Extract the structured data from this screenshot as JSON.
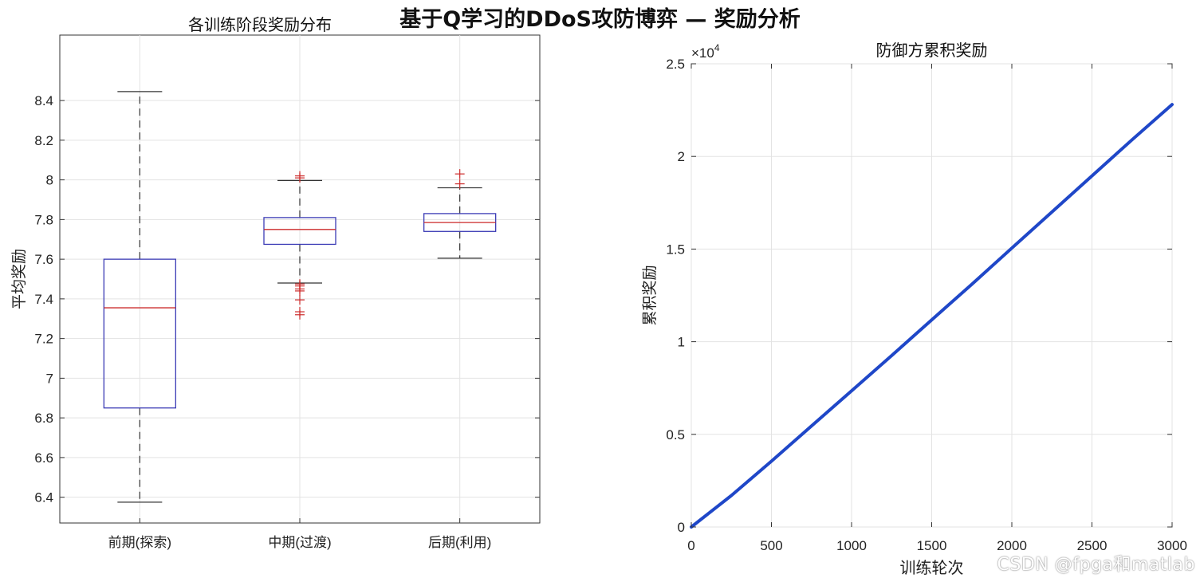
{
  "figure_title": "基于Q学习的DDoS攻防博弈 — 奖励分析",
  "watermark": "CSDN @fpga和matlab",
  "colors": {
    "box_edge": "#3b3bb5",
    "median": "#cc2a2a",
    "outlier": "#cc2a2a",
    "whisker": "#333333",
    "line": "#1f47c8",
    "grid": "#e3e3e3",
    "axis": "#333333"
  },
  "chart_data": [
    {
      "type": "box",
      "title": "各训练阶段奖励分布",
      "xlabel": "",
      "ylabel": "平均奖励",
      "ylim": [
        6.27,
        8.73
      ],
      "yticks": [
        6.4,
        6.6,
        6.8,
        7,
        7.2,
        7.4,
        7.6,
        7.8,
        8,
        8.2,
        8.4
      ],
      "ytick_labels": [
        "6.4",
        "6.6",
        "6.8",
        "7",
        "7.2",
        "7.4",
        "7.6",
        "7.8",
        "8",
        "8.2",
        "8.4"
      ],
      "grid": true,
      "categories": [
        "前期(探索)",
        "中期(过渡)",
        "后期(利用)"
      ],
      "boxes": [
        {
          "whisker_low": 6.375,
          "q1": 6.85,
          "median": 7.355,
          "q3": 7.6,
          "whisker_high": 8.445,
          "outliers": []
        },
        {
          "whisker_low": 7.48,
          "q1": 7.675,
          "median": 7.75,
          "q3": 7.81,
          "whisker_high": 7.997,
          "outliers": [
            8.02,
            8.01,
            7.475,
            7.465,
            7.45,
            7.44,
            7.395,
            7.335,
            7.32
          ]
        },
        {
          "whisker_low": 7.605,
          "q1": 7.74,
          "median": 7.785,
          "q3": 7.83,
          "whisker_high": 7.96,
          "outliers": [
            8.03,
            7.98
          ]
        }
      ]
    },
    {
      "type": "line",
      "title": "防御方累积奖励",
      "xlabel": "训练轮次",
      "ylabel": "累积奖励",
      "xlim": [
        0,
        3000
      ],
      "ylim": [
        0,
        25000
      ],
      "xticks": [
        0,
        500,
        1000,
        1500,
        2000,
        2500,
        3000
      ],
      "xtick_labels": [
        "0",
        "500",
        "1000",
        "1500",
        "2000",
        "2500",
        "3000"
      ],
      "yticks": [
        0,
        5000,
        10000,
        15000,
        20000,
        25000
      ],
      "ytick_labels": [
        "0",
        "0.5",
        "1",
        "1.5",
        "2",
        "2.5"
      ],
      "y_exponent_base": "×10",
      "y_exponent_power": "4",
      "grid": true,
      "series": [
        {
          "x": [
            0,
            250,
            500,
            750,
            1000,
            1250,
            1500,
            1750,
            2000,
            2250,
            2500,
            2750,
            3000
          ],
          "y": [
            0,
            1700,
            3550,
            5450,
            7350,
            9250,
            11180,
            13100,
            15050,
            17000,
            18950,
            20900,
            22800
          ]
        }
      ]
    }
  ]
}
